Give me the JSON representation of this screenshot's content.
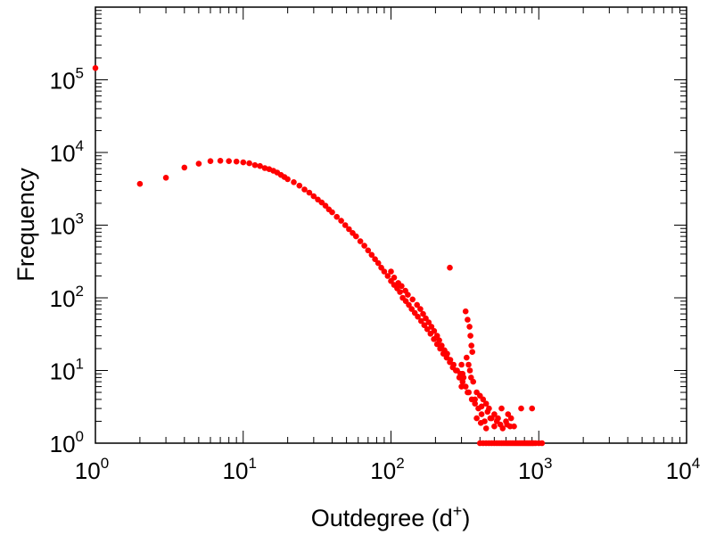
{
  "chart_data": {
    "type": "scatter",
    "xlabel": "Outdegree (d",
    "xlabel_sup": "+",
    "xlabel_close": ")",
    "ylabel": "Frequency",
    "x_scale": "log",
    "y_scale": "log",
    "xlim": [
      1,
      10000
    ],
    "ylim": [
      1,
      1000000
    ],
    "x_ticks": [
      {
        "base": "10",
        "exp": "0",
        "value": 1
      },
      {
        "base": "10",
        "exp": "1",
        "value": 10
      },
      {
        "base": "10",
        "exp": "2",
        "value": 100
      },
      {
        "base": "10",
        "exp": "3",
        "value": 1000
      },
      {
        "base": "10",
        "exp": "4",
        "value": 10000
      }
    ],
    "y_ticks": [
      {
        "base": "10",
        "exp": "0",
        "value": 1
      },
      {
        "base": "10",
        "exp": "1",
        "value": 10
      },
      {
        "base": "10",
        "exp": "2",
        "value": 100
      },
      {
        "base": "10",
        "exp": "3",
        "value": 1000
      },
      {
        "base": "10",
        "exp": "4",
        "value": 10000
      },
      {
        "base": "10",
        "exp": "5",
        "value": 100000
      }
    ],
    "grid": false,
    "marker_color": "#ff0000",
    "series": [
      {
        "points": [
          [
            1,
            145000
          ],
          [
            2,
            3700
          ],
          [
            3,
            4500
          ],
          [
            4,
            6200
          ],
          [
            5,
            7000
          ],
          [
            6,
            7600
          ],
          [
            7,
            7700
          ],
          [
            8,
            7600
          ],
          [
            9,
            7500
          ],
          [
            10,
            7300
          ],
          [
            11,
            7100
          ],
          [
            12,
            6700
          ],
          [
            13,
            6500
          ],
          [
            14,
            6100
          ],
          [
            15,
            5900
          ],
          [
            16,
            5600
          ],
          [
            17,
            5300
          ],
          [
            18,
            4900
          ],
          [
            19,
            4600
          ],
          [
            20,
            4300
          ],
          [
            22,
            3900
          ],
          [
            24,
            3500
          ],
          [
            26,
            3100
          ],
          [
            28,
            2800
          ],
          [
            30,
            2500
          ],
          [
            32,
            2250
          ],
          [
            34,
            2050
          ],
          [
            36,
            1850
          ],
          [
            38,
            1650
          ],
          [
            40,
            1500
          ],
          [
            43,
            1300
          ],
          [
            46,
            1150
          ],
          [
            49,
            1000
          ],
          [
            52,
            880
          ],
          [
            55,
            780
          ],
          [
            58,
            700
          ],
          [
            62,
            600
          ],
          [
            66,
            520
          ],
          [
            70,
            450
          ],
          [
            74,
            390
          ],
          [
            78,
            340
          ],
          [
            82,
            300
          ],
          [
            86,
            260
          ],
          [
            90,
            230
          ],
          [
            95,
            200
          ],
          [
            100,
            170
          ],
          [
            105,
            150
          ],
          [
            110,
            135
          ],
          [
            115,
            120
          ],
          [
            120,
            100
          ],
          [
            126,
            90
          ],
          [
            132,
            80
          ],
          [
            138,
            70
          ],
          [
            145,
            62
          ],
          [
            152,
            55
          ],
          [
            160,
            48
          ],
          [
            168,
            42
          ],
          [
            176,
            37
          ],
          [
            185,
            32
          ],
          [
            195,
            27
          ],
          [
            205,
            23
          ],
          [
            215,
            20
          ],
          [
            226,
            17
          ],
          [
            238,
            15
          ],
          [
            250,
            13
          ],
          [
            262,
            11
          ],
          [
            275,
            10
          ],
          [
            290,
            8
          ],
          [
            305,
            7
          ],
          [
            320,
            6
          ],
          [
            336,
            5
          ],
          [
            352,
            4
          ],
          [
            370,
            3.5
          ],
          [
            390,
            3
          ],
          [
            410,
            2.5
          ],
          [
            430,
            2
          ],
          [
            100,
            230
          ],
          [
            105,
            190
          ],
          [
            112,
            160
          ],
          [
            118,
            145
          ],
          [
            125,
            125
          ],
          [
            130,
            110
          ],
          [
            140,
            95
          ],
          [
            150,
            80
          ],
          [
            158,
            70
          ],
          [
            165,
            60
          ],
          [
            172,
            52
          ],
          [
            180,
            46
          ],
          [
            188,
            40
          ],
          [
            196,
            35
          ],
          [
            205,
            30
          ],
          [
            212,
            26
          ],
          [
            220,
            22
          ],
          [
            230,
            19
          ],
          [
            240,
            17
          ],
          [
            252,
            14
          ],
          [
            265,
            12
          ],
          [
            280,
            10
          ],
          [
            295,
            9
          ],
          [
            310,
            8
          ],
          [
            250,
            260
          ],
          [
            320,
            65
          ],
          [
            330,
            50
          ],
          [
            340,
            40
          ],
          [
            345,
            30
          ],
          [
            350,
            22
          ],
          [
            355,
            18
          ],
          [
            300,
            12
          ],
          [
            305,
            9
          ],
          [
            325,
            15
          ],
          [
            335,
            12
          ],
          [
            342,
            10
          ],
          [
            348,
            8
          ],
          [
            360,
            7
          ],
          [
            380,
            5
          ],
          [
            400,
            4.5
          ],
          [
            420,
            4
          ],
          [
            440,
            3.5
          ],
          [
            460,
            3
          ],
          [
            500,
            2.5
          ],
          [
            560,
            3
          ],
          [
            620,
            2.5
          ],
          [
            760,
            3
          ],
          [
            900,
            3
          ],
          [
            300,
            6
          ],
          [
            330,
            5
          ],
          [
            370,
            4
          ],
          [
            410,
            3.2
          ],
          [
            450,
            2.7
          ],
          [
            480,
            2.2
          ],
          [
            520,
            2
          ],
          [
            550,
            1.8
          ],
          [
            600,
            2
          ],
          [
            640,
            1.7
          ],
          [
            380,
            2.2
          ],
          [
            405,
            1.9
          ],
          [
            440,
            1.6
          ],
          [
            470,
            2.2
          ],
          [
            500,
            1.7
          ],
          [
            530,
            2.2
          ],
          [
            570,
            1.6
          ],
          [
            610,
            1.8
          ],
          [
            650,
            2.2
          ],
          [
            680,
            1.7
          ],
          [
            400,
            1
          ],
          [
            420,
            1
          ],
          [
            440,
            1
          ],
          [
            460,
            1
          ],
          [
            480,
            1
          ],
          [
            500,
            1
          ],
          [
            520,
            1
          ],
          [
            540,
            1
          ],
          [
            560,
            1
          ],
          [
            580,
            1
          ],
          [
            600,
            1
          ],
          [
            620,
            1
          ],
          [
            640,
            1
          ],
          [
            660,
            1
          ],
          [
            680,
            1
          ],
          [
            700,
            1
          ],
          [
            720,
            1
          ],
          [
            740,
            1
          ],
          [
            760,
            1
          ],
          [
            780,
            1
          ],
          [
            800,
            1
          ],
          [
            820,
            1
          ],
          [
            840,
            1
          ],
          [
            860,
            1
          ],
          [
            880,
            1
          ],
          [
            900,
            1
          ],
          [
            920,
            1
          ],
          [
            950,
            1
          ],
          [
            1000,
            1
          ],
          [
            1050,
            1
          ]
        ]
      }
    ]
  }
}
